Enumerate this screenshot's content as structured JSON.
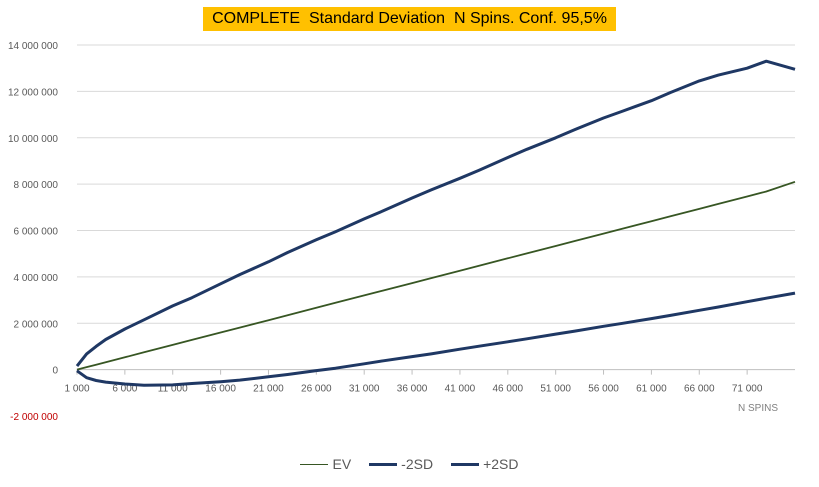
{
  "chart_data": {
    "type": "line",
    "title": "COMPLETE  Standard Deviation  N Spins. Conf. 95,5%",
    "xlabel": "N SPINS",
    "ylabel": "",
    "xlim": [
      1000,
      76000
    ],
    "ylim": [
      -2000000,
      14000000
    ],
    "y_ticks": [
      -2000000,
      0,
      2000000,
      4000000,
      6000000,
      8000000,
      10000000,
      12000000,
      14000000
    ],
    "y_tick_labels": [
      "-2 000 000",
      "0",
      "2 000 000",
      "4 000 000",
      "6 000 000",
      "8 000 000",
      "10 000 000",
      "12 000 000",
      "14 000 000"
    ],
    "x_ticks": [
      1000,
      6000,
      11000,
      16000,
      21000,
      26000,
      31000,
      36000,
      41000,
      46000,
      51000,
      56000,
      61000,
      66000,
      71000
    ],
    "x_tick_labels": [
      "1 000",
      "6 000",
      "11 000",
      "16 000",
      "21 000",
      "26 000",
      "31 000",
      "36 000",
      "41 000",
      "46 000",
      "51 000",
      "56 000",
      "61 000",
      "66 000",
      "71 000"
    ],
    "grid": true,
    "legend_position": "bottom",
    "x": [
      1000,
      2000,
      3000,
      4000,
      6000,
      8000,
      11000,
      13000,
      16000,
      18000,
      21000,
      23000,
      26000,
      28000,
      31000,
      33000,
      36000,
      38000,
      41000,
      43000,
      46000,
      48000,
      51000,
      53000,
      56000,
      58000,
      61000,
      63000,
      66000,
      68000,
      71000,
      73000,
      76000
    ],
    "series": [
      {
        "name": "EV",
        "color": "#375623",
        "values": [
          0,
          107000,
          213000,
          320000,
          533000,
          747000,
          1067000,
          1280000,
          1600000,
          1813000,
          2133000,
          2347000,
          2667000,
          2880000,
          3200000,
          3413000,
          3733000,
          3947000,
          4267000,
          4480000,
          4800000,
          5013000,
          5333000,
          5547000,
          5867000,
          6080000,
          6400000,
          6613000,
          6933000,
          7147000,
          7467000,
          7680000,
          8100000
        ]
      },
      {
        "name": "-2SD",
        "color": "#1f3864",
        "values": [
          -50000,
          -350000,
          -470000,
          -540000,
          -620000,
          -670000,
          -660000,
          -600000,
          -520000,
          -450000,
          -310000,
          -210000,
          -40000,
          60000,
          250000,
          380000,
          560000,
          680000,
          880000,
          1010000,
          1200000,
          1330000,
          1530000,
          1660000,
          1870000,
          2000000,
          2200000,
          2340000,
          2560000,
          2700000,
          2930000,
          3080000,
          3300000
        ]
      },
      {
        "name": "+2SD",
        "color": "#1f3864",
        "values": [
          150000,
          680000,
          1000000,
          1300000,
          1750000,
          2150000,
          2750000,
          3100000,
          3700000,
          4100000,
          4650000,
          5050000,
          5600000,
          5950000,
          6500000,
          6850000,
          7400000,
          7750000,
          8250000,
          8600000,
          9150000,
          9500000,
          10000000,
          10350000,
          10850000,
          11150000,
          11600000,
          11950000,
          12450000,
          12700000,
          13000000,
          13300000,
          12950000
        ]
      }
    ]
  }
}
